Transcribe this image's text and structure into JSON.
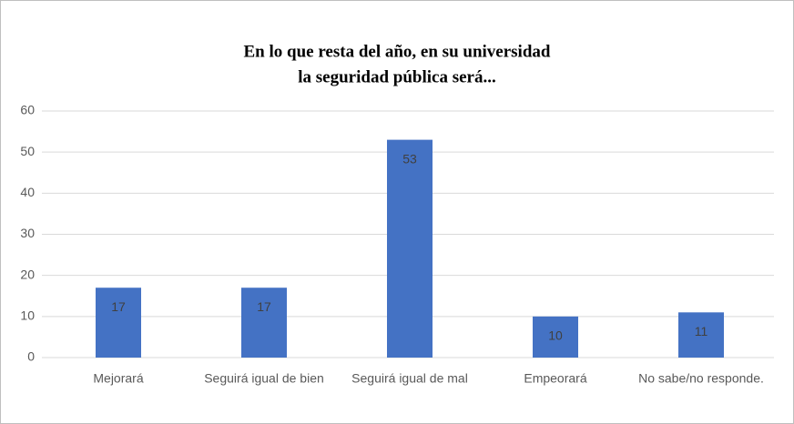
{
  "chart_data": {
    "type": "bar",
    "title": [
      "En lo que resta del año, en su universidad",
      "la seguridad pública será..."
    ],
    "categories": [
      "Mejorará",
      "Seguirá igual de bien",
      "Seguirá igual de mal",
      "Empeorará",
      "No sabe/no responde."
    ],
    "values": [
      17,
      17,
      53,
      10,
      11
    ],
    "color": "#4472c4",
    "ylim": [
      0,
      60
    ],
    "yticks": [
      0,
      10,
      20,
      30,
      40,
      50,
      60
    ],
    "grid": true
  }
}
